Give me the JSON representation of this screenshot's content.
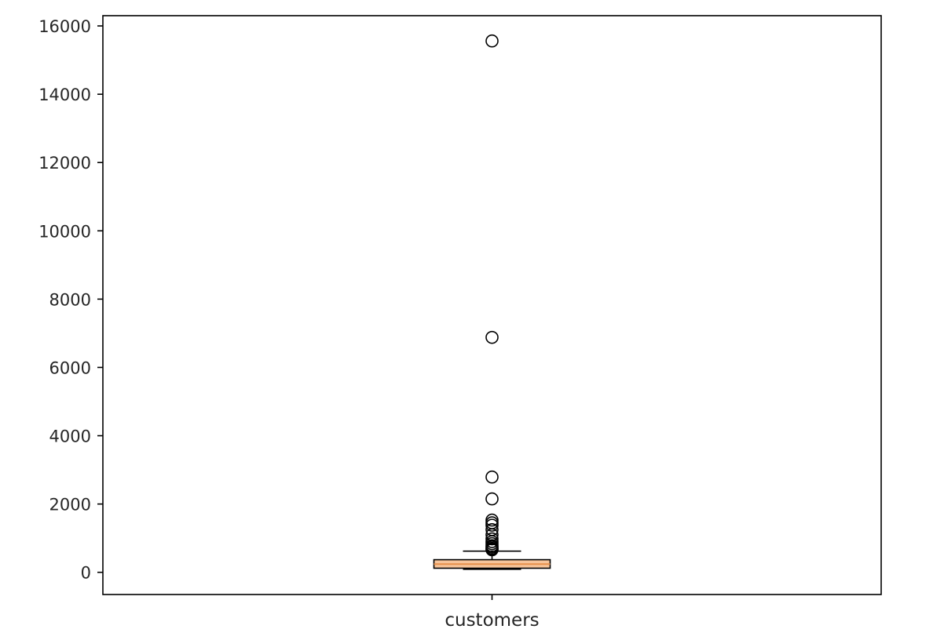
{
  "chart_data": {
    "type": "box",
    "categories": [
      "customers"
    ],
    "ylim": [
      -650,
      16300
    ],
    "yticks": [
      0,
      2000,
      4000,
      6000,
      8000,
      10000,
      12000,
      14000,
      16000
    ],
    "grid": false,
    "box": {
      "whisker_low": 90,
      "q1": 120,
      "median": 240,
      "q3": 370,
      "whisker_high": 620
    },
    "outliers": [
      15560,
      6880,
      2790,
      2150,
      1530,
      1450,
      1380,
      1250,
      1100,
      980,
      900,
      840,
      780,
      740,
      700,
      680,
      660
    ]
  },
  "colors": {
    "axis": "#000000",
    "box_edge": "#000000",
    "median": "#e6904a",
    "box_fill": "#f6c49a",
    "outlier_edge": "#000000"
  }
}
